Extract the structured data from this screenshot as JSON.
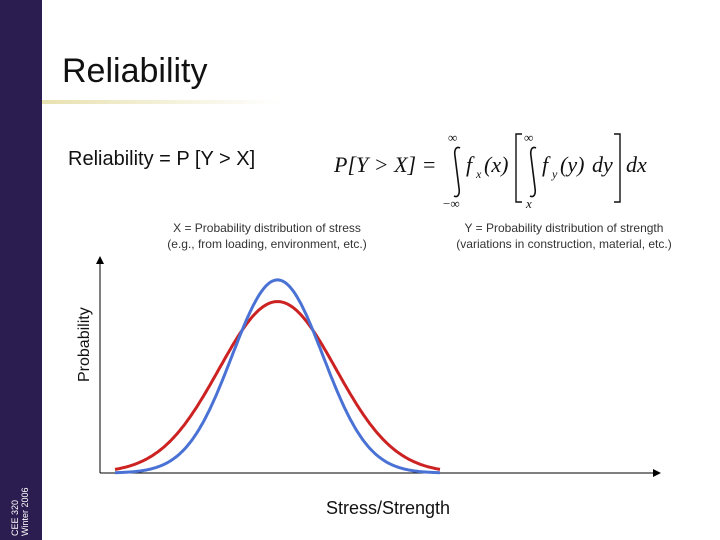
{
  "sidebar": {
    "course": "CEE 320",
    "term": "Winter 2006"
  },
  "slide": {
    "title": "Reliability",
    "reliability_text": "Reliability = P [Y > X]"
  },
  "formula": {
    "lhs": "P[Y > X] =",
    "outer_upper": "∞",
    "outer_lower": "−∞",
    "outer_integrand": "f",
    "outer_sub": "x",
    "outer_arg": "(x)",
    "inner_upper": "∞",
    "inner_lower": "x",
    "inner_integrand": "f",
    "inner_sub": "y",
    "inner_arg": "(y)",
    "inner_d": "dy",
    "outer_d": "dx"
  },
  "annotations": {
    "x_line1": "X = Probability distribution of stress",
    "x_line2": "(e.g., from loading, environment, etc.)",
    "y_line1": "Y = Probability distribution of strength",
    "y_line2": "(variations in construction, material, etc.)"
  },
  "chart_data": {
    "type": "line",
    "title": "",
    "xlabel": "Stress/Strength",
    "ylabel": "Probability",
    "xlim": [
      0,
      1
    ],
    "ylim": [
      0,
      1
    ],
    "series": [
      {
        "name": "X (stress)",
        "color": "#cc2222",
        "mean": 0.5,
        "sd": 0.18,
        "peak": 0.79
      },
      {
        "name": "Y (strength)",
        "color": "#4a72d4",
        "mean": 0.5,
        "sd": 0.14,
        "peak": 0.89
      }
    ]
  }
}
